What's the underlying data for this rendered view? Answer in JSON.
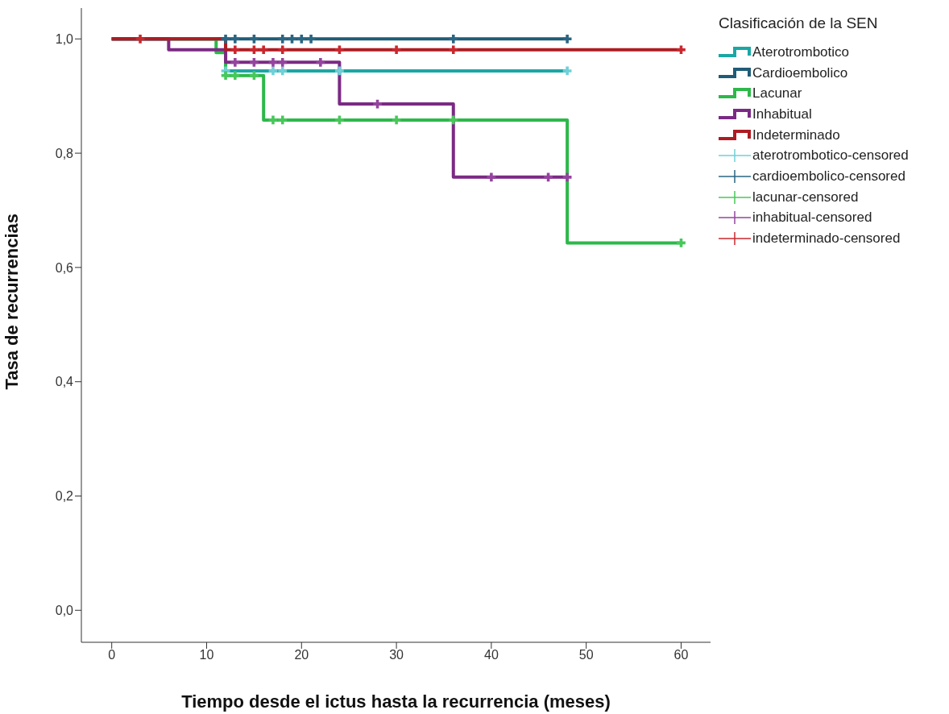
{
  "chart_data": {
    "type": "step",
    "xlabel": "Tiempo desde el ictus hasta la recurrencia (meses)",
    "ylabel": "Tasa de recurrencias",
    "legend_title": "Clasificación de la SEN",
    "legend": "right",
    "grid": false,
    "xlim": [
      -3.2,
      63.1
    ],
    "xticks": [
      0,
      10,
      20,
      30,
      40,
      50,
      60
    ],
    "ylim": [
      -0.056,
      1.054
    ],
    "yticks": [
      {
        "value": 0,
        "label": "0,0"
      },
      {
        "value": 0.2,
        "label": "0,2"
      },
      {
        "value": 0.4,
        "label": "0,4"
      },
      {
        "value": 0.6,
        "label": "0,6"
      },
      {
        "value": 0.8,
        "label": "0,8"
      },
      {
        "value": 1,
        "label": "1,0"
      }
    ],
    "series": [
      {
        "name": "Aterotrombotico",
        "marker": "none",
        "color": "#1aa7a5",
        "x": [
          0,
          12,
          48
        ],
        "values": [
          1,
          0.944,
          0.944
        ]
      },
      {
        "name": "Cardioembolico",
        "marker": "none",
        "color": "#1f5c77",
        "x": [
          0,
          48
        ],
        "values": [
          1,
          1
        ]
      },
      {
        "name": "Lacunar",
        "marker": "none",
        "color": "#2db84a",
        "x": [
          0,
          11,
          12,
          16,
          48,
          60
        ],
        "values": [
          1,
          0.976,
          0.936,
          0.858,
          0.643,
          0.643
        ]
      },
      {
        "name": "Inhabitual",
        "marker": "none",
        "color": "#7b2a84",
        "x": [
          0,
          6,
          12,
          24,
          36,
          48
        ],
        "values": [
          1,
          0.981,
          0.959,
          0.886,
          0.758,
          0.758
        ]
      },
      {
        "name": "Indeterminado",
        "marker": "none",
        "color": "#ad1c22",
        "x": [
          0,
          12,
          60
        ],
        "values": [
          1,
          0.981,
          0.981
        ]
      },
      {
        "name": "aterotrombotico-censored",
        "type": "scatter",
        "marker": "cross",
        "color": "#6fd0d8",
        "x": [
          12,
          17,
          18,
          24,
          48
        ],
        "values": [
          0.944,
          0.944,
          0.944,
          0.944,
          0.944
        ]
      },
      {
        "name": "cardioembolico-censored",
        "type": "scatter",
        "marker": "cross",
        "color": "#2a6682",
        "x": [
          12,
          13,
          15,
          18,
          19,
          20,
          21,
          36,
          48
        ],
        "values": [
          1,
          1,
          1,
          1,
          1,
          1,
          1,
          1,
          1
        ]
      },
      {
        "name": "lacunar-censored",
        "type": "scatter",
        "marker": "cross",
        "color": "#48c75a",
        "x": [
          12,
          13,
          15,
          17,
          18,
          24,
          30,
          36,
          60
        ],
        "values": [
          0.936,
          0.936,
          0.936,
          0.858,
          0.858,
          0.858,
          0.858,
          0.858,
          0.643
        ]
      },
      {
        "name": "inhabitual-censored",
        "type": "scatter",
        "marker": "cross",
        "color": "#94449e",
        "x": [
          13,
          15,
          17,
          18,
          22,
          28,
          40,
          46,
          48
        ],
        "values": [
          0.959,
          0.959,
          0.959,
          0.959,
          0.959,
          0.886,
          0.758,
          0.758,
          0.758
        ]
      },
      {
        "name": "indeterminado-censored",
        "type": "scatter",
        "marker": "cross",
        "color": "#c8282e",
        "x": [
          3,
          13,
          15,
          16,
          18,
          24,
          30,
          36,
          60
        ],
        "values": [
          1,
          0.981,
          0.981,
          0.981,
          0.981,
          0.981,
          0.981,
          0.981,
          0.981
        ]
      }
    ]
  }
}
